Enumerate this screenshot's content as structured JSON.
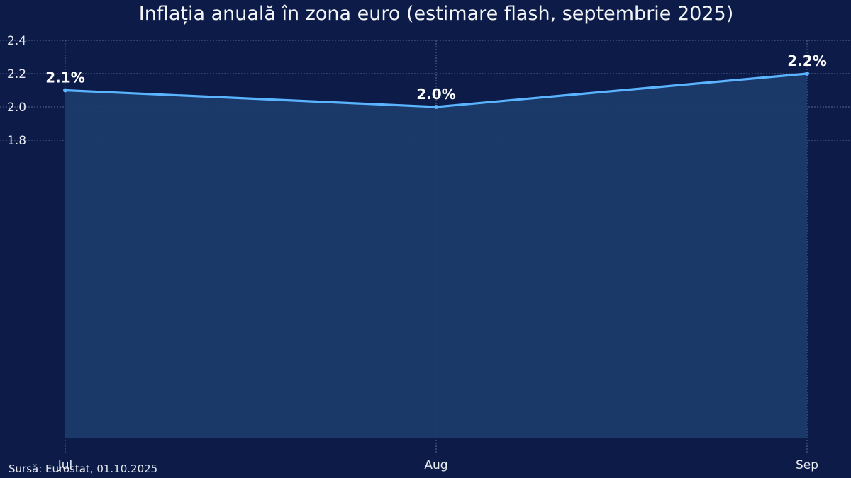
{
  "chart_data": {
    "type": "area",
    "title": "Inflația anuală în zona euro (estimare flash, septembrie 2025)",
    "categories": [
      "Jul",
      "Aug",
      "Sep"
    ],
    "series": [
      {
        "values": [
          2.1,
          2.0,
          2.2
        ]
      }
    ],
    "data_labels": [
      "2.1%",
      "2.0%",
      "2.2%"
    ],
    "y_ticks": [
      1.8,
      2.0,
      2.2,
      2.4
    ],
    "ylim": [
      1.8,
      2.4
    ],
    "grid": true,
    "colors": {
      "background": "#0c1b48",
      "line": "#5ab4ff",
      "fill": "#1b3b6b",
      "grid": "#6f7fa5"
    }
  },
  "source": "Sursă: Eurostat, 01.10.2025"
}
